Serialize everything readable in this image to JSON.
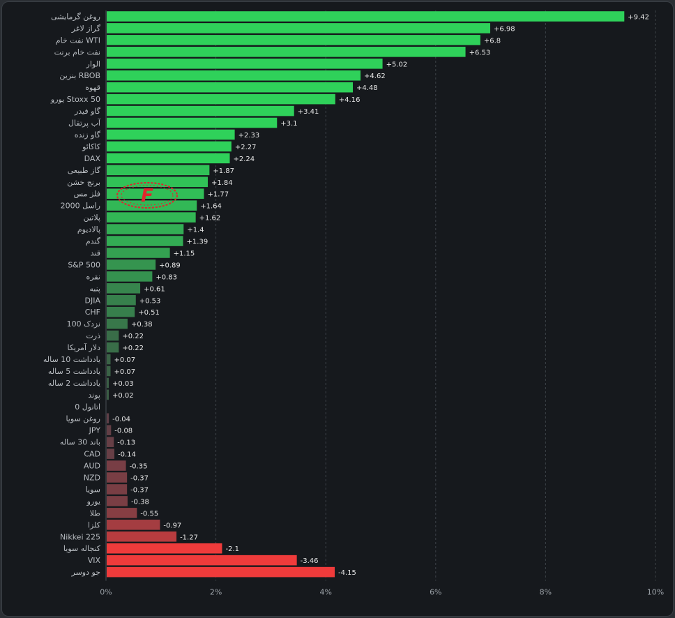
{
  "chart_data": {
    "type": "bar",
    "orientation": "horizontal",
    "title": "",
    "xlabel": "",
    "ylabel": "",
    "xlim": [
      0,
      10
    ],
    "x_ticks": [
      "0%",
      "2%",
      "4%",
      "6%",
      "8%",
      "10%"
    ],
    "x_tick_values": [
      0,
      2,
      4,
      6,
      8,
      10
    ],
    "grid": true,
    "categories": [
      "روغن گرمایشی",
      "گراز لاغر",
      "نفت خام WTI",
      "نفت خام برنت",
      "الوار",
      "بنزین RBOB",
      "قهوه",
      "یورو Stoxx 50",
      "گاو فیدر",
      "آب پرتقال",
      "گاو زنده",
      "کاکائو",
      "DAX",
      "گاز طبیعی",
      "برنج خشن",
      "فلز مس",
      "راسل 2000",
      "پلاتین",
      "پالادیوم",
      "گندم",
      "قند",
      "S&P 500",
      "نقره",
      "پنبه",
      "DJIA",
      "CHF",
      "نزدک 100",
      "ذرت",
      "دلار آمریکا",
      "یادداشت 10 ساله",
      "یادداشت 5 ساله",
      "یادداشت 2 ساله",
      "پوند",
      "اتانول 0",
      "روغن سویا",
      "JPY",
      "باند 30 ساله",
      "CAD",
      "AUD",
      "NZD",
      "سویا",
      "یورو",
      "طلا",
      "کلزا",
      "Nikkei 225",
      "کنجاله سویا",
      "VIX",
      "جو دوسر"
    ],
    "values": [
      9.42,
      6.98,
      6.8,
      6.53,
      5.02,
      4.62,
      4.48,
      4.16,
      3.41,
      3.1,
      2.33,
      2.27,
      2.24,
      1.87,
      1.84,
      1.77,
      1.64,
      1.62,
      1.4,
      1.39,
      1.15,
      0.89,
      0.83,
      0.61,
      0.53,
      0.51,
      0.38,
      0.22,
      0.22,
      0.07,
      0.07,
      0.03,
      0.02,
      0,
      -0.04,
      -0.08,
      -0.13,
      -0.14,
      -0.35,
      -0.37,
      -0.37,
      -0.38,
      -0.55,
      -0.97,
      -1.27,
      -2.1,
      -3.46,
      -4.15
    ],
    "value_labels": [
      "+9.42",
      "+6.98",
      "+6.8",
      "+6.53",
      "+5.02",
      "+4.62",
      "+4.48",
      "+4.16",
      "+3.41",
      "+3.1",
      "+2.33",
      "+2.27",
      "+2.24",
      "+1.87",
      "+1.84",
      "+1.77",
      "+1.64",
      "+1.62",
      "+1.4",
      "+1.39",
      "+1.15",
      "+0.89",
      "+0.83",
      "+0.61",
      "+0.53",
      "+0.51",
      "+0.38",
      "+0.22",
      "+0.22",
      "+0.07",
      "+0.07",
      "+0.03",
      "+0.02",
      "",
      "-0.04",
      "-0.08",
      "-0.13",
      "-0.14",
      "-0.35",
      "-0.37",
      "-0.37",
      "-0.38",
      "-0.55",
      "-0.97",
      "-1.27",
      "-2.1",
      "-3.46",
      "-4.15"
    ],
    "bar_magnitude_note": "negative values are drawn as bars extending right from 0 with red color",
    "colors": {
      "positive_strong": "#2fd15a",
      "positive_weak": "#3b5a45",
      "negative_weak": "#5a3f47",
      "negative_strong": "#ef3b3b",
      "background": "#16191d",
      "grid": "#3d4248",
      "value_text": "#e6e6e6",
      "highlight_value_text": "#5ee07a",
      "negative_highlight_text": "#ff7a7a"
    }
  },
  "watermark": {
    "letter": "F",
    "color": "#e0262c"
  }
}
